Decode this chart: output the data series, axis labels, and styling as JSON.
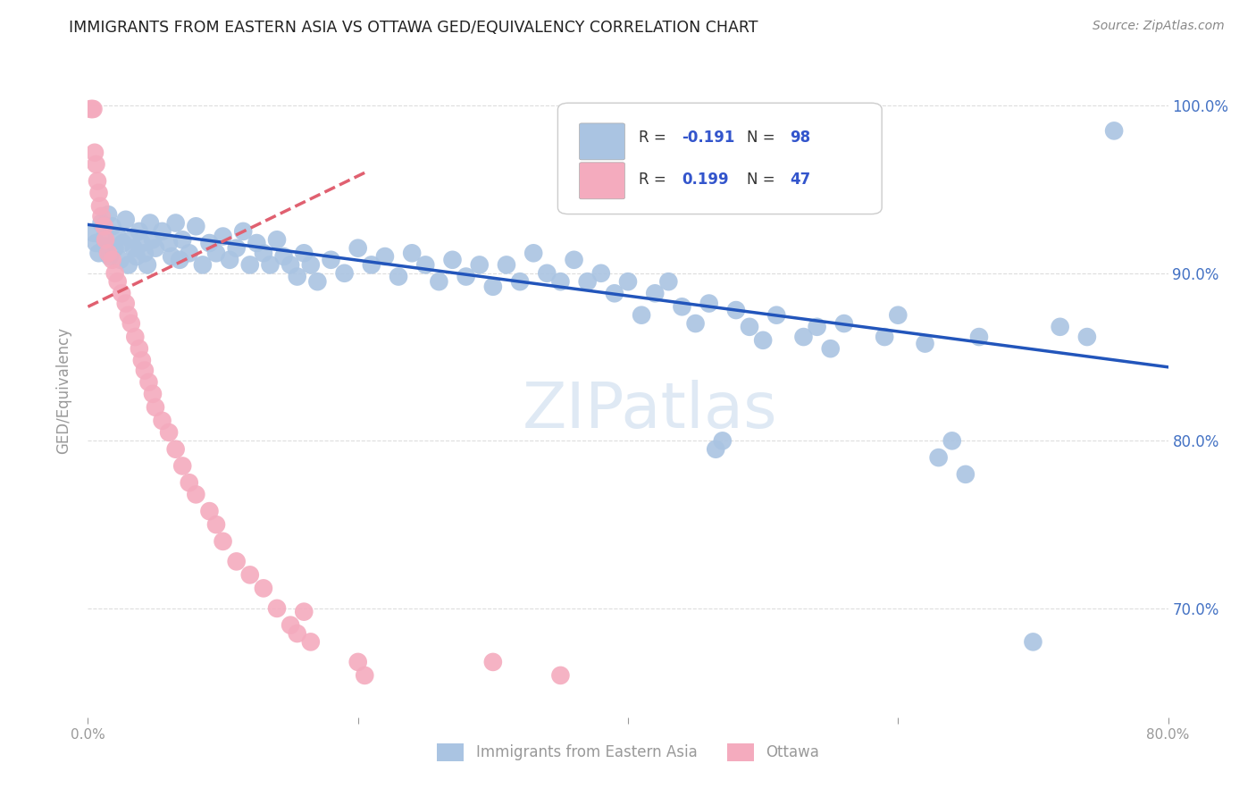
{
  "title": "IMMIGRANTS FROM EASTERN ASIA VS OTTAWA GED/EQUIVALENCY CORRELATION CHART",
  "source": "Source: ZipAtlas.com",
  "xlabel_blue": "Immigrants from Eastern Asia",
  "xlabel_pink": "Ottawa",
  "ylabel": "GED/Equivalency",
  "R_blue": -0.191,
  "N_blue": 98,
  "R_pink": 0.199,
  "N_pink": 47,
  "xlim": [
    0.0,
    0.8
  ],
  "ylim": [
    0.635,
    1.025
  ],
  "xticks": [
    0.0,
    0.2,
    0.4,
    0.6,
    0.8
  ],
  "xtick_labels": [
    "0.0%",
    "",
    "",
    "",
    "80.0%"
  ],
  "yticks": [
    0.7,
    0.8,
    0.9,
    1.0
  ],
  "ytick_labels": [
    "70.0%",
    "80.0%",
    "90.0%",
    "100.0%"
  ],
  "watermark": "ZIPatlas",
  "blue_color": "#aac4e2",
  "pink_color": "#f4abbe",
  "blue_line_color": "#2255bb",
  "pink_line_color": "#e06070",
  "blue_dots": [
    [
      0.004,
      0.924
    ],
    [
      0.006,
      0.918
    ],
    [
      0.008,
      0.912
    ],
    [
      0.01,
      0.93
    ],
    [
      0.012,
      0.921
    ],
    [
      0.013,
      0.916
    ],
    [
      0.015,
      0.935
    ],
    [
      0.016,
      0.91
    ],
    [
      0.018,
      0.928
    ],
    [
      0.02,
      0.915
    ],
    [
      0.022,
      0.922
    ],
    [
      0.024,
      0.908
    ],
    [
      0.026,
      0.918
    ],
    [
      0.028,
      0.932
    ],
    [
      0.03,
      0.905
    ],
    [
      0.032,
      0.92
    ],
    [
      0.034,
      0.915
    ],
    [
      0.036,
      0.91
    ],
    [
      0.038,
      0.925
    ],
    [
      0.04,
      0.918
    ],
    [
      0.042,
      0.912
    ],
    [
      0.044,
      0.905
    ],
    [
      0.046,
      0.93
    ],
    [
      0.048,
      0.92
    ],
    [
      0.05,
      0.915
    ],
    [
      0.055,
      0.925
    ],
    [
      0.06,
      0.918
    ],
    [
      0.062,
      0.91
    ],
    [
      0.065,
      0.93
    ],
    [
      0.068,
      0.908
    ],
    [
      0.07,
      0.92
    ],
    [
      0.075,
      0.912
    ],
    [
      0.08,
      0.928
    ],
    [
      0.085,
      0.905
    ],
    [
      0.09,
      0.918
    ],
    [
      0.095,
      0.912
    ],
    [
      0.1,
      0.922
    ],
    [
      0.105,
      0.908
    ],
    [
      0.11,
      0.915
    ],
    [
      0.115,
      0.925
    ],
    [
      0.12,
      0.905
    ],
    [
      0.125,
      0.918
    ],
    [
      0.13,
      0.912
    ],
    [
      0.135,
      0.905
    ],
    [
      0.14,
      0.92
    ],
    [
      0.145,
      0.91
    ],
    [
      0.15,
      0.905
    ],
    [
      0.155,
      0.898
    ],
    [
      0.16,
      0.912
    ],
    [
      0.165,
      0.905
    ],
    [
      0.17,
      0.895
    ],
    [
      0.18,
      0.908
    ],
    [
      0.19,
      0.9
    ],
    [
      0.2,
      0.915
    ],
    [
      0.21,
      0.905
    ],
    [
      0.22,
      0.91
    ],
    [
      0.23,
      0.898
    ],
    [
      0.24,
      0.912
    ],
    [
      0.25,
      0.905
    ],
    [
      0.26,
      0.895
    ],
    [
      0.27,
      0.908
    ],
    [
      0.28,
      0.898
    ],
    [
      0.29,
      0.905
    ],
    [
      0.3,
      0.892
    ],
    [
      0.31,
      0.905
    ],
    [
      0.32,
      0.895
    ],
    [
      0.33,
      0.912
    ],
    [
      0.34,
      0.9
    ],
    [
      0.35,
      0.895
    ],
    [
      0.36,
      0.908
    ],
    [
      0.37,
      0.895
    ],
    [
      0.38,
      0.9
    ],
    [
      0.39,
      0.888
    ],
    [
      0.4,
      0.895
    ],
    [
      0.41,
      0.875
    ],
    [
      0.42,
      0.888
    ],
    [
      0.43,
      0.895
    ],
    [
      0.44,
      0.88
    ],
    [
      0.45,
      0.87
    ],
    [
      0.46,
      0.882
    ],
    [
      0.465,
      0.795
    ],
    [
      0.47,
      0.8
    ],
    [
      0.48,
      0.878
    ],
    [
      0.49,
      0.868
    ],
    [
      0.5,
      0.86
    ],
    [
      0.51,
      0.875
    ],
    [
      0.53,
      0.862
    ],
    [
      0.54,
      0.868
    ],
    [
      0.55,
      0.855
    ],
    [
      0.56,
      0.87
    ],
    [
      0.59,
      0.862
    ],
    [
      0.6,
      0.875
    ],
    [
      0.62,
      0.858
    ],
    [
      0.63,
      0.79
    ],
    [
      0.64,
      0.8
    ],
    [
      0.65,
      0.78
    ],
    [
      0.66,
      0.862
    ],
    [
      0.7,
      0.68
    ],
    [
      0.72,
      0.868
    ],
    [
      0.74,
      0.862
    ],
    [
      0.76,
      0.985
    ]
  ],
  "pink_dots": [
    [
      0.002,
      0.998
    ],
    [
      0.003,
      0.998
    ],
    [
      0.004,
      0.998
    ],
    [
      0.005,
      0.972
    ],
    [
      0.006,
      0.965
    ],
    [
      0.007,
      0.955
    ],
    [
      0.008,
      0.948
    ],
    [
      0.009,
      0.94
    ],
    [
      0.01,
      0.934
    ],
    [
      0.012,
      0.928
    ],
    [
      0.013,
      0.92
    ],
    [
      0.015,
      0.912
    ],
    [
      0.018,
      0.908
    ],
    [
      0.02,
      0.9
    ],
    [
      0.022,
      0.895
    ],
    [
      0.025,
      0.888
    ],
    [
      0.028,
      0.882
    ],
    [
      0.03,
      0.875
    ],
    [
      0.032,
      0.87
    ],
    [
      0.035,
      0.862
    ],
    [
      0.038,
      0.855
    ],
    [
      0.04,
      0.848
    ],
    [
      0.042,
      0.842
    ],
    [
      0.045,
      0.835
    ],
    [
      0.048,
      0.828
    ],
    [
      0.05,
      0.82
    ],
    [
      0.055,
      0.812
    ],
    [
      0.06,
      0.805
    ],
    [
      0.065,
      0.795
    ],
    [
      0.07,
      0.785
    ],
    [
      0.075,
      0.775
    ],
    [
      0.08,
      0.768
    ],
    [
      0.09,
      0.758
    ],
    [
      0.095,
      0.75
    ],
    [
      0.1,
      0.74
    ],
    [
      0.11,
      0.728
    ],
    [
      0.12,
      0.72
    ],
    [
      0.13,
      0.712
    ],
    [
      0.14,
      0.7
    ],
    [
      0.15,
      0.69
    ],
    [
      0.155,
      0.685
    ],
    [
      0.16,
      0.698
    ],
    [
      0.165,
      0.68
    ],
    [
      0.2,
      0.668
    ],
    [
      0.205,
      0.66
    ],
    [
      0.3,
      0.668
    ],
    [
      0.35,
      0.66
    ]
  ],
  "blue_line": {
    "x0": 0.0,
    "y0": 0.929,
    "x1": 0.8,
    "y1": 0.844
  },
  "pink_line": {
    "x0": 0.0,
    "y0": 0.88,
    "x1": 0.205,
    "y1": 0.96
  },
  "background_color": "#ffffff",
  "grid_color": "#dddddd",
  "title_color": "#333333",
  "axis_color": "#999999",
  "right_ytick_color": "#4472c4",
  "legend_text_color": "#333333",
  "legend_num_color": "#3355cc"
}
